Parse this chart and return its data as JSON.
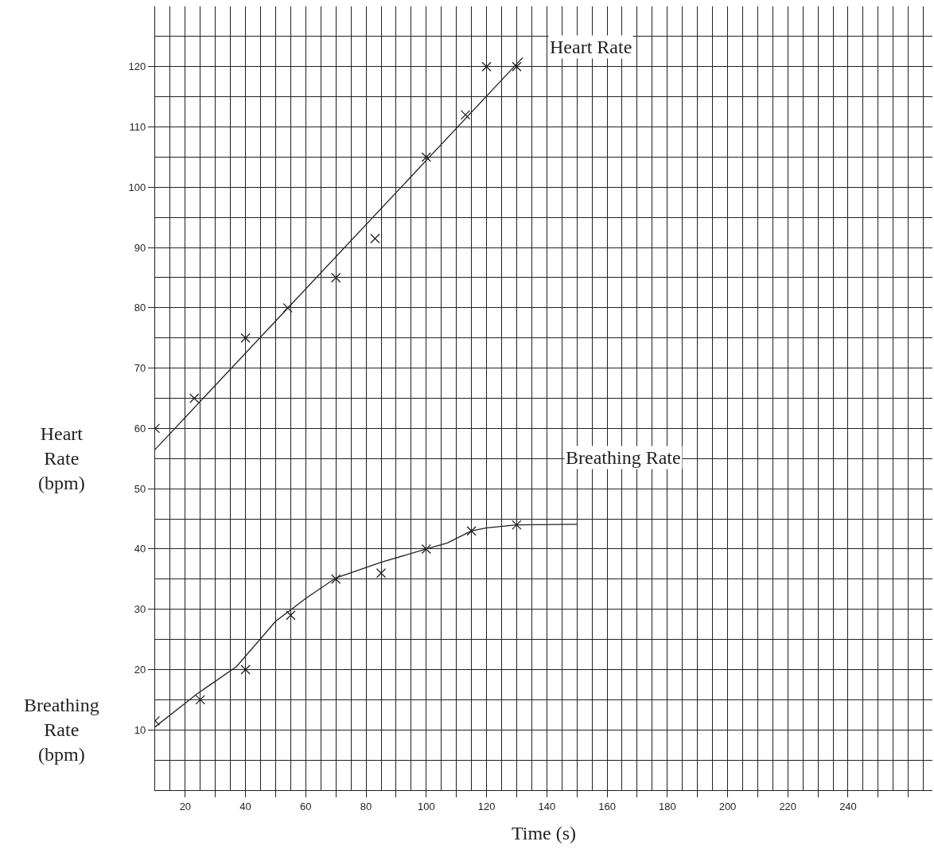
{
  "chart_data": {
    "type": "scatter",
    "xlabel": "Time (s)",
    "ylabel": "Heart Rate (bpm)",
    "xlim": [
      10,
      268
    ],
    "ylim": [
      0,
      130
    ],
    "xticks": [
      20,
      {
        "value": 30,
        "label": null
      },
      40,
      {
        "value": 50,
        "label": null
      },
      60,
      {
        "value": 70,
        "label": null
      },
      80,
      {
        "value": 90,
        "label": null
      },
      100,
      {
        "value": 110,
        "label": null
      },
      120,
      {
        "value": 130,
        "label": null
      },
      140,
      {
        "value": 150,
        "label": null
      },
      160,
      {
        "value": 170,
        "label": null
      },
      180,
      {
        "value": 190,
        "label": null
      },
      200,
      {
        "value": 210,
        "label": null
      },
      220,
      {
        "value": 230,
        "label": null
      },
      240,
      {
        "value": 250,
        "label": null
      },
      {
        "value": 260,
        "label": null
      }
    ],
    "yticks": [
      10,
      20,
      30,
      40,
      50,
      60,
      70,
      80,
      90,
      100,
      110,
      120
    ],
    "grid": true,
    "series": [
      {
        "marker": "cross",
        "color": "#231f20",
        "x": [
          10,
          23,
          40,
          54,
          70,
          83,
          100,
          113,
          120,
          130
        ],
        "values": [
          60,
          65,
          75,
          80,
          85,
          91.5,
          105,
          112,
          120,
          120
        ]
      },
      {
        "type": "line",
        "marker": "none",
        "line_style": "solid",
        "color": "#231f20",
        "x": [
          10,
          132
        ],
        "values": [
          56.5,
          121.5
        ]
      },
      {
        "marker": "cross",
        "color": "#231f20",
        "x": [
          10,
          25,
          40,
          55,
          70,
          85,
          100,
          115,
          130
        ],
        "values": [
          11.5,
          15,
          20,
          29,
          35,
          36,
          40,
          43,
          44
        ]
      },
      {
        "type": "line",
        "marker": "none",
        "line_style": "solid",
        "color": "#231f20",
        "x": [
          10,
          24,
          37,
          50,
          60,
          70,
          85,
          100,
          107,
          115,
          120,
          130,
          150
        ],
        "values": [
          10.5,
          16,
          20.5,
          28,
          31.8,
          35.2,
          37.8,
          40,
          41,
          43,
          43.5,
          44,
          44.1
        ]
      }
    ],
    "annotations": [
      "Heart Rate",
      "Breathing Rate",
      "Breathing Rate (bpm)"
    ]
  }
}
